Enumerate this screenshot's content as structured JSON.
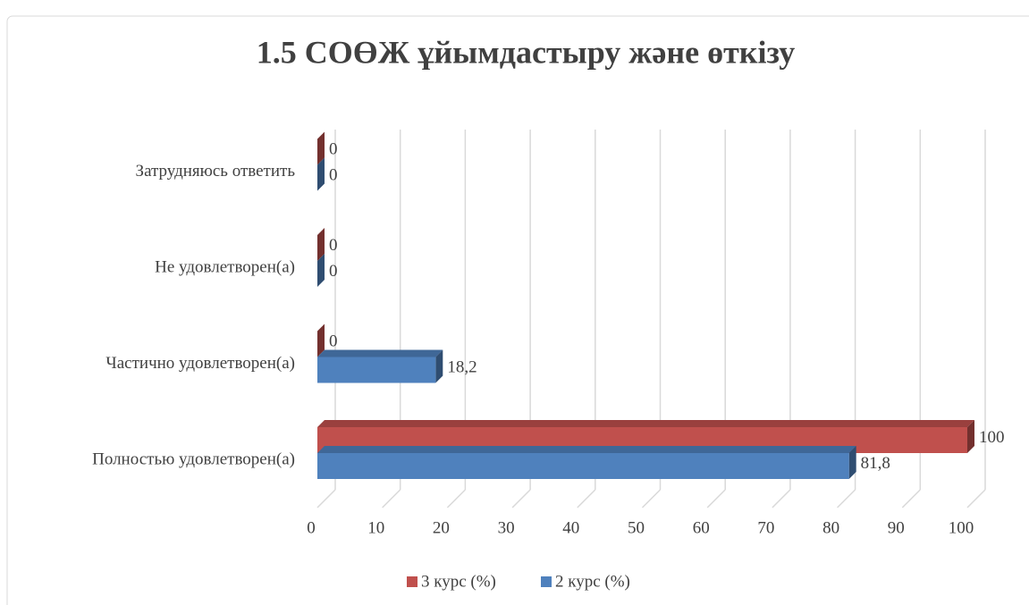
{
  "chart_data": {
    "type": "bar3d-horizontal",
    "title": "1.5 СОӨЖ ұйымдастыру және өткізу",
    "categories": [
      "Полностью удовлетворен(а)",
      "Частично удовлетворен(а)",
      "Не удовлетворен(а)",
      "Затрудняюсь ответить"
    ],
    "series": [
      {
        "name": "3 курс (%)",
        "color": "#c0504d",
        "values": [
          100,
          0,
          0,
          0
        ],
        "value_labels": [
          "100",
          "0",
          "0",
          "0"
        ]
      },
      {
        "name": "2 курс (%)",
        "color": "#4f81bd",
        "values": [
          81.8,
          18.2,
          0,
          0
        ],
        "value_labels": [
          "81,8",
          "18,2",
          "0",
          "0"
        ]
      }
    ],
    "xlim": [
      0,
      100
    ],
    "xticks": [
      0,
      10,
      20,
      30,
      40,
      50,
      60,
      70,
      80,
      90,
      100
    ],
    "grid": true,
    "legend": "bottom"
  }
}
